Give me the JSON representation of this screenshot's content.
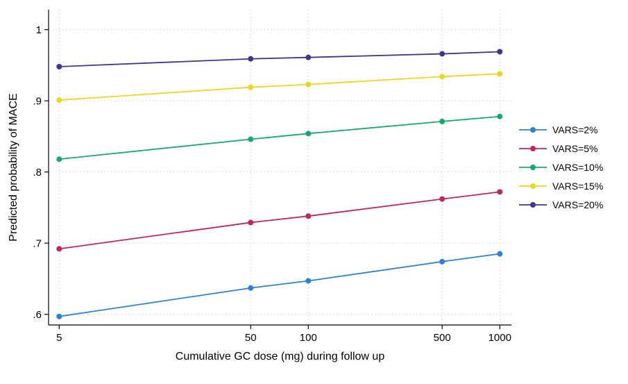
{
  "chart_data": {
    "type": "line",
    "title": "",
    "xlabel": "Cumulative GC dose (mg) during follow up",
    "ylabel": "Predicted probability of MACE",
    "x_scale": "log",
    "x": [
      5,
      50,
      100,
      500,
      1000
    ],
    "x_ticks": [
      5,
      50,
      100,
      500,
      1000
    ],
    "x_tick_labels": [
      "5",
      "50",
      "100",
      "500",
      "1000"
    ],
    "y_ticks": [
      0.6,
      0.7,
      0.8,
      0.9,
      1.0
    ],
    "y_tick_labels": [
      ".6",
      ".7",
      ".8",
      ".9",
      "1"
    ],
    "xlim": [
      4.4,
      1150
    ],
    "ylim": [
      0.585,
      1.028
    ],
    "grid": "dashed-both",
    "grid_color": "#d9d9d9",
    "axis_color": "#000000",
    "legend_position": "right-outside",
    "series": [
      {
        "name": "VARS=2%",
        "color": "#2f7ed8",
        "values": [
          0.597,
          0.637,
          0.647,
          0.674,
          0.685
        ]
      },
      {
        "name": "VARS=5%",
        "color": "#c0265e",
        "values": [
          0.692,
          0.729,
          0.738,
          0.762,
          0.772
        ]
      },
      {
        "name": "VARS=10%",
        "color": "#17a96b",
        "values": [
          0.818,
          0.846,
          0.854,
          0.871,
          0.878
        ]
      },
      {
        "name": "VARS=15%",
        "color": "#eed51f",
        "values": [
          0.901,
          0.919,
          0.923,
          0.934,
          0.938
        ]
      },
      {
        "name": "VARS=20%",
        "color": "#3d3590",
        "values": [
          0.948,
          0.959,
          0.961,
          0.966,
          0.969
        ]
      }
    ]
  }
}
